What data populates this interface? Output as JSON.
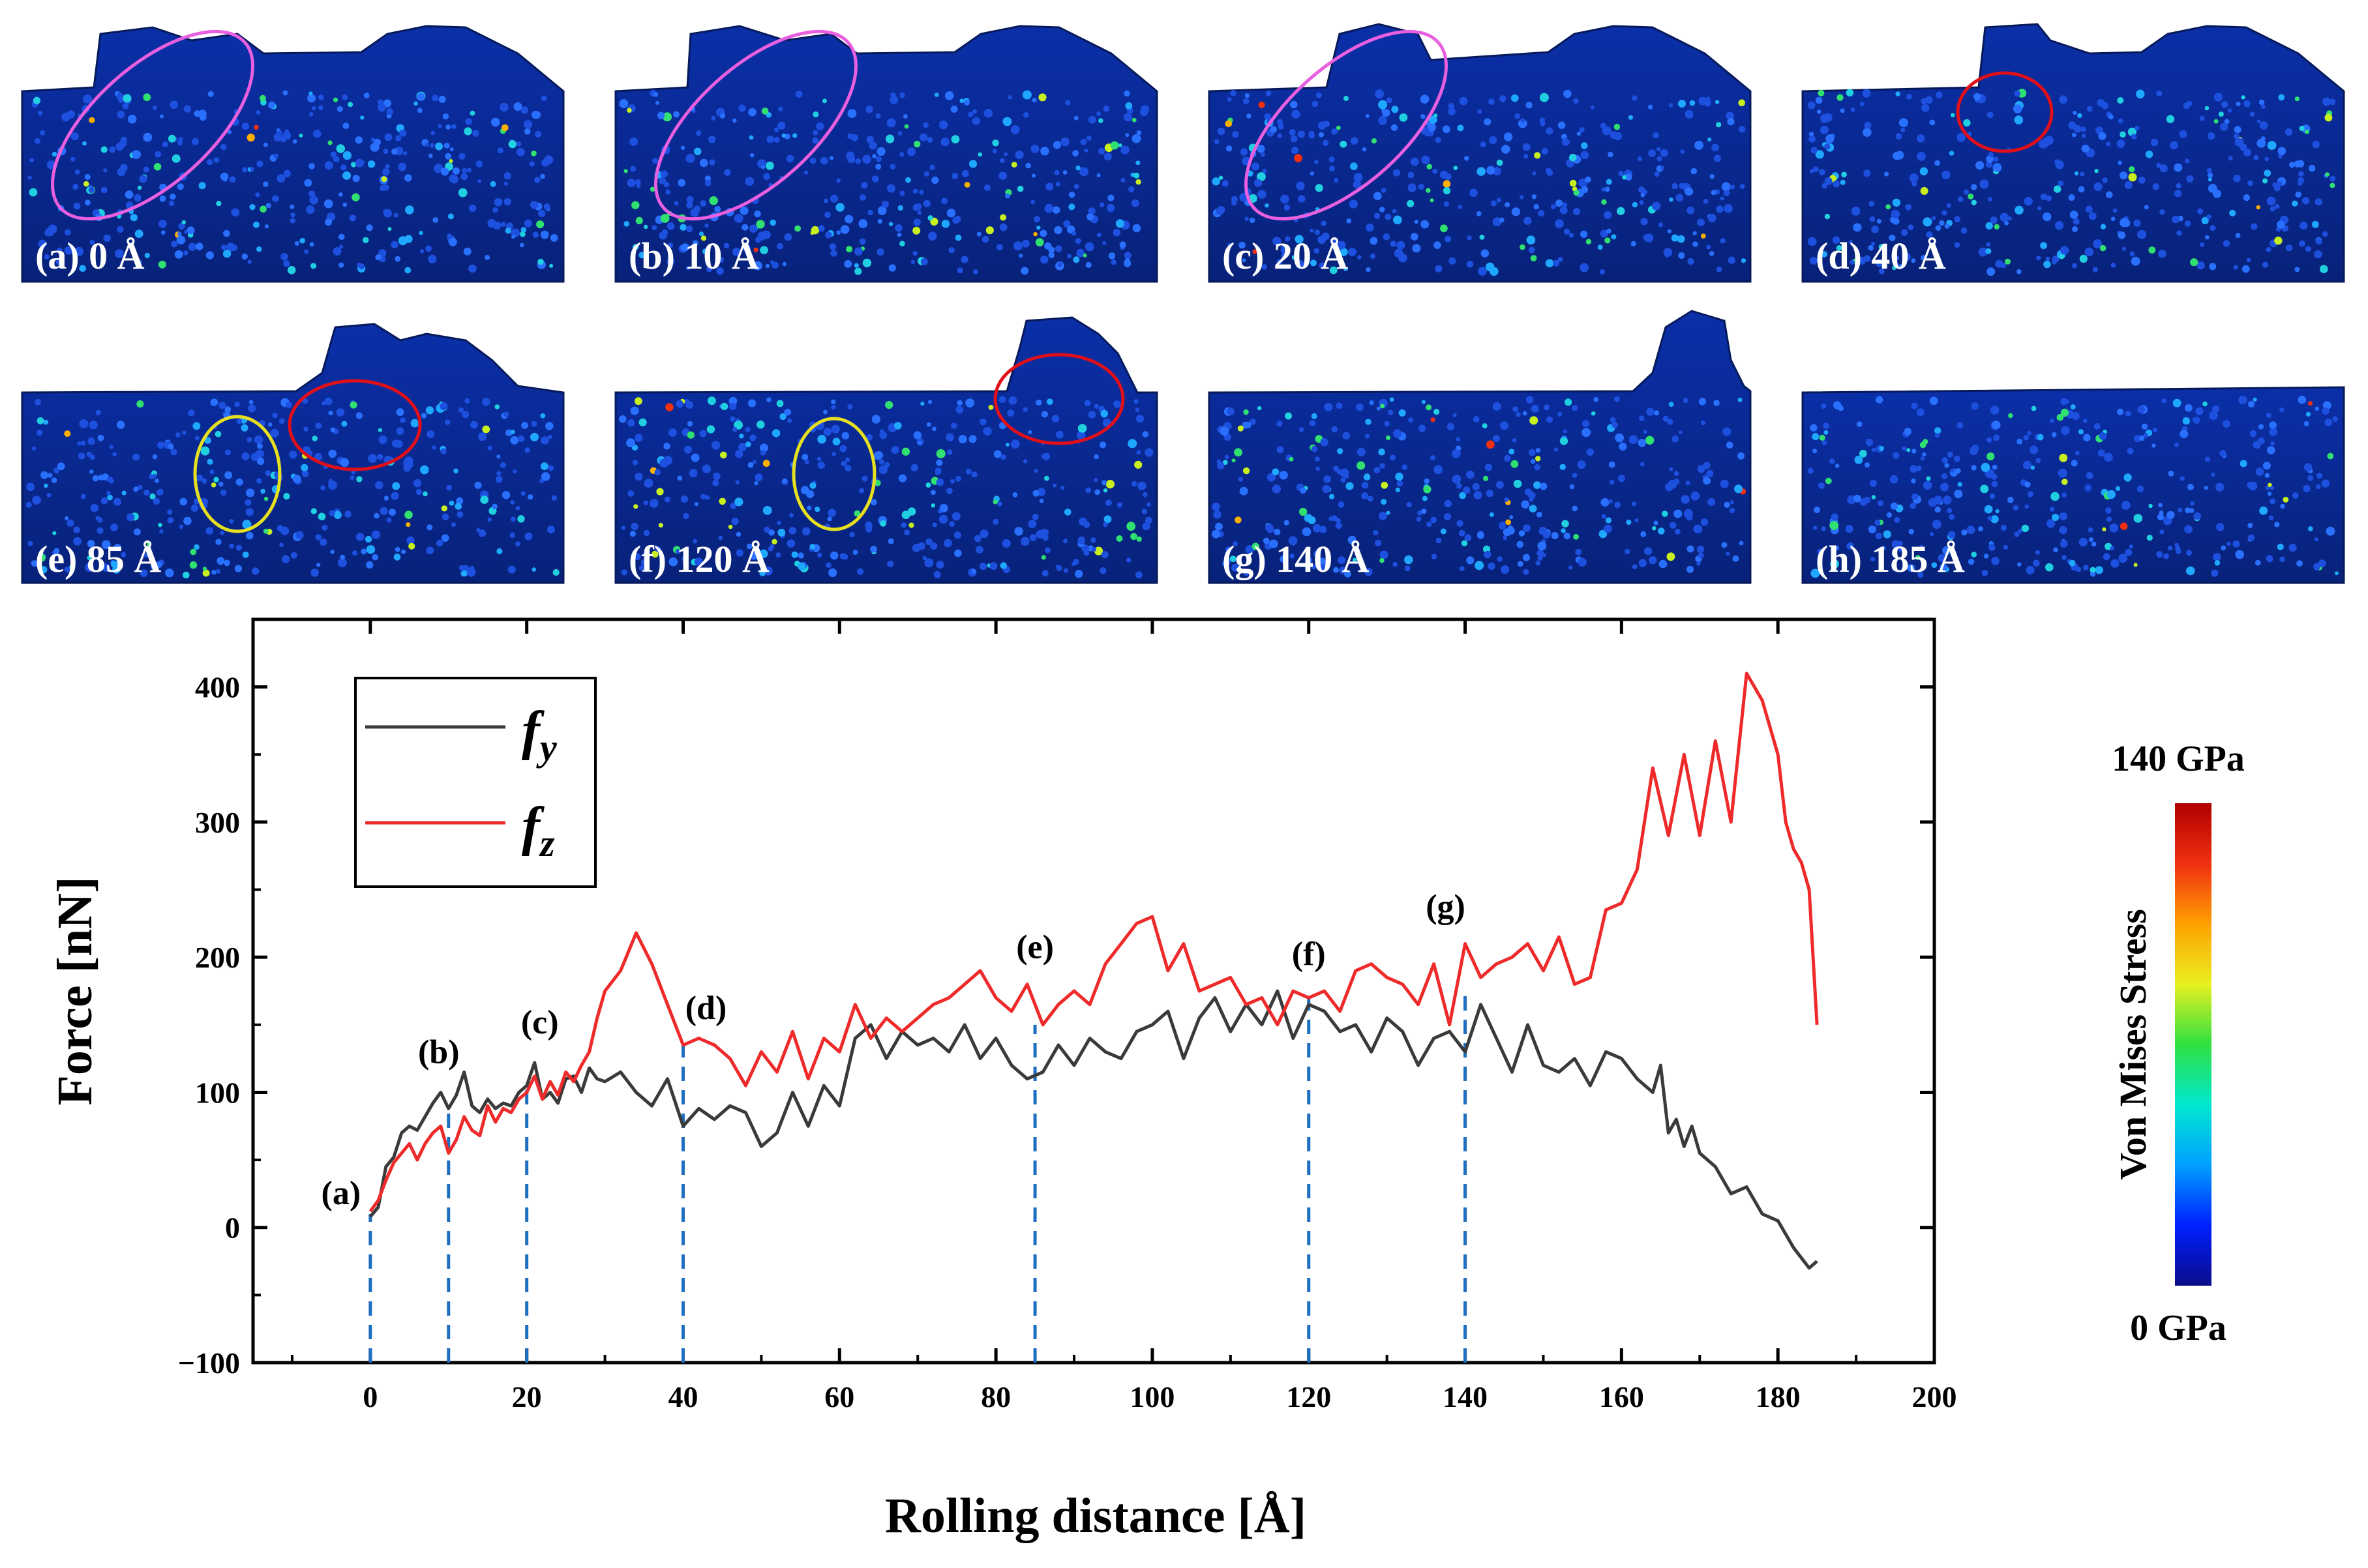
{
  "panels": [
    {
      "id": "a",
      "label": "(a) 0 Å",
      "ellipses": [
        {
          "color": "#e85fe0"
        }
      ]
    },
    {
      "id": "b",
      "label": "(b) 10 Å",
      "ellipses": [
        {
          "color": "#e85fe0"
        }
      ]
    },
    {
      "id": "c",
      "label": "(c) 20 Å",
      "ellipses": [
        {
          "color": "#e85fe0"
        }
      ]
    },
    {
      "id": "d",
      "label": "(d) 40 Å",
      "ellipses": [
        {
          "color": "#e0101a"
        }
      ]
    },
    {
      "id": "e",
      "label": "(e) 85 Å",
      "ellipses": [
        {
          "color": "#e6e020"
        },
        {
          "color": "#e0101a"
        }
      ]
    },
    {
      "id": "f",
      "label": "(f) 120 Å",
      "ellipses": [
        {
          "color": "#e6e020"
        },
        {
          "color": "#e0101a"
        }
      ]
    },
    {
      "id": "g",
      "label": "(g) 140 Å",
      "ellipses": []
    },
    {
      "id": "h",
      "label": "(h) 185 Å",
      "ellipses": []
    }
  ],
  "colorbar": {
    "title": "Von Mises Stress",
    "max_label": "140 GPa",
    "min_label": "0 GPa",
    "colors": [
      "#0b0b8a",
      "#0020ff",
      "#00a0ff",
      "#00e8d0",
      "#30e040",
      "#e8f020",
      "#ffa000",
      "#f03010",
      "#b00000"
    ]
  },
  "chart_data": {
    "type": "line",
    "xlabel": "Rolling distance [Å]",
    "ylabel": "Force [nN]",
    "xlim": [
      -15,
      200
    ],
    "ylim": [
      -100,
      450
    ],
    "xticks": [
      0,
      20,
      40,
      60,
      80,
      100,
      120,
      140,
      160,
      180,
      200
    ],
    "yticks": [
      -100,
      0,
      100,
      200,
      300,
      400
    ],
    "ytick_labels": [
      "−100",
      "0",
      "100",
      "200",
      "300",
      "400"
    ],
    "legend": {
      "position": "top-left"
    },
    "series": [
      {
        "name": "f",
        "subscript": "y",
        "color": "#3a3a3a",
        "x": [
          0,
          1,
          2,
          3,
          4,
          5,
          6,
          7,
          8,
          9,
          10,
          11,
          12,
          13,
          14,
          15,
          16,
          17,
          18,
          19,
          20,
          21,
          22,
          23,
          24,
          25,
          26,
          27,
          28,
          29,
          30,
          32,
          34,
          36,
          38,
          40,
          42,
          44,
          46,
          48,
          50,
          52,
          54,
          56,
          58,
          60,
          62,
          64,
          66,
          68,
          70,
          72,
          74,
          76,
          78,
          80,
          82,
          84,
          86,
          88,
          90,
          92,
          94,
          96,
          98,
          100,
          102,
          104,
          106,
          108,
          110,
          112,
          114,
          116,
          118,
          120,
          122,
          124,
          126,
          128,
          130,
          132,
          134,
          136,
          138,
          140,
          142,
          144,
          146,
          148,
          150,
          152,
          154,
          156,
          158,
          160,
          162,
          164,
          165,
          166,
          167,
          168,
          169,
          170,
          172,
          174,
          176,
          178,
          180,
          182,
          184,
          185
        ],
        "values": [
          8,
          15,
          45,
          52,
          70,
          75,
          72,
          82,
          92,
          100,
          88,
          98,
          115,
          90,
          85,
          95,
          88,
          92,
          90,
          100,
          105,
          122,
          95,
          100,
          92,
          110,
          112,
          100,
          118,
          110,
          108,
          115,
          100,
          90,
          110,
          75,
          88,
          80,
          90,
          85,
          60,
          70,
          100,
          75,
          105,
          90,
          140,
          150,
          125,
          145,
          135,
          140,
          130,
          150,
          125,
          140,
          120,
          110,
          115,
          135,
          120,
          140,
          130,
          125,
          145,
          150,
          160,
          125,
          155,
          170,
          145,
          165,
          150,
          175,
          140,
          165,
          160,
          145,
          150,
          130,
          155,
          145,
          120,
          140,
          145,
          130,
          165,
          140,
          115,
          150,
          120,
          115,
          125,
          105,
          130,
          125,
          110,
          100,
          120,
          70,
          80,
          60,
          75,
          55,
          45,
          25,
          30,
          10,
          5,
          -15,
          -30,
          -25
        ]
      },
      {
        "name": "f",
        "subscript": "z",
        "color": "#ee2a2a",
        "x": [
          0,
          1,
          2,
          3,
          4,
          5,
          6,
          7,
          8,
          9,
          10,
          11,
          12,
          13,
          14,
          15,
          16,
          17,
          18,
          19,
          20,
          21,
          22,
          23,
          24,
          25,
          26,
          27,
          28,
          29,
          30,
          32,
          34,
          36,
          38,
          40,
          42,
          44,
          46,
          48,
          50,
          52,
          54,
          56,
          58,
          60,
          62,
          64,
          66,
          68,
          70,
          72,
          74,
          76,
          78,
          80,
          82,
          84,
          86,
          88,
          90,
          92,
          94,
          96,
          98,
          100,
          102,
          104,
          106,
          108,
          110,
          112,
          114,
          116,
          118,
          120,
          122,
          124,
          126,
          128,
          130,
          132,
          134,
          136,
          138,
          140,
          142,
          144,
          146,
          148,
          150,
          152,
          154,
          156,
          158,
          160,
          162,
          164,
          166,
          168,
          170,
          172,
          174,
          176,
          178,
          180,
          181,
          182,
          183,
          184,
          185
        ],
        "values": [
          12,
          20,
          35,
          48,
          55,
          62,
          50,
          62,
          70,
          75,
          55,
          65,
          82,
          72,
          68,
          90,
          78,
          88,
          85,
          95,
          100,
          112,
          95,
          108,
          98,
          115,
          108,
          120,
          130,
          155,
          175,
          190,
          218,
          195,
          165,
          135,
          140,
          135,
          125,
          105,
          130,
          115,
          145,
          110,
          140,
          130,
          165,
          140,
          155,
          145,
          155,
          165,
          170,
          180,
          190,
          170,
          160,
          180,
          150,
          165,
          175,
          165,
          195,
          210,
          225,
          230,
          190,
          210,
          175,
          180,
          185,
          165,
          170,
          150,
          175,
          170,
          175,
          160,
          190,
          195,
          185,
          180,
          165,
          195,
          150,
          210,
          185,
          195,
          200,
          210,
          190,
          215,
          180,
          185,
          235,
          240,
          265,
          340,
          290,
          350,
          290,
          360,
          300,
          410,
          390,
          350,
          300,
          280,
          270,
          250,
          150
        ]
      }
    ],
    "annotations": [
      {
        "label": "(a)",
        "x": 0,
        "y": 10
      },
      {
        "label": "(b)",
        "x": 10,
        "y": 100
      },
      {
        "label": "(c)",
        "x": 20,
        "y": 122
      },
      {
        "label": "(d)",
        "x": 40,
        "y": 135
      },
      {
        "label": "(e)",
        "x": 85,
        "y": 180
      },
      {
        "label": "(f)",
        "x": 120,
        "y": 175
      },
      {
        "label": "(g)",
        "x": 140,
        "y": 210
      }
    ],
    "markers": [
      {
        "x": 0,
        "y": 10
      },
      {
        "x": 10,
        "y": 85
      },
      {
        "x": 20,
        "y": 105
      },
      {
        "x": 40,
        "y": 135
      },
      {
        "x": 85,
        "y": 150
      },
      {
        "x": 120,
        "y": 175
      },
      {
        "x": 140,
        "y": 175
      }
    ],
    "marker_color": "#1f6fc0"
  }
}
